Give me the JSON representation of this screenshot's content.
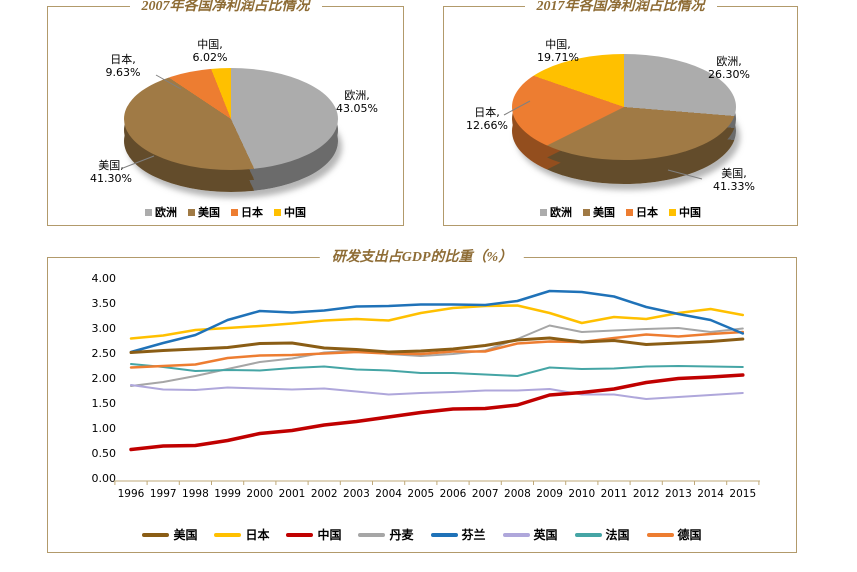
{
  "page": {
    "background": "#FFFFFF",
    "panel_border_color": "#B29A6B",
    "title_color": "#8E6C35",
    "axis_color": "#BFA878"
  },
  "chart_data": [
    {
      "type": "pie",
      "title": "2007年各国净利润占比情况",
      "legend_position": "bottom",
      "slices": [
        {
          "name": "欧洲",
          "pct": 43.05,
          "label_name": "欧洲,",
          "label_pct": "43.05%",
          "color": "#ACACAC"
        },
        {
          "name": "美国",
          "pct": 41.3,
          "label_name": "美国,",
          "label_pct": "41.30%",
          "color": "#A07A45"
        },
        {
          "name": "日本",
          "pct": 9.63,
          "label_name": "日本,",
          "label_pct": "9.63%",
          "color": "#ED7D31"
        },
        {
          "name": "中国",
          "pct": 6.02,
          "label_name": "中国,",
          "label_pct": "6.02%",
          "color": "#FFC000"
        }
      ]
    },
    {
      "type": "pie",
      "title": "2017年各国净利润占比情况",
      "legend_position": "bottom",
      "slices": [
        {
          "name": "欧洲",
          "pct": 26.3,
          "label_name": "欧洲,",
          "label_pct": "26.30%",
          "color": "#ACACAC"
        },
        {
          "name": "美国",
          "pct": 41.33,
          "label_name": "美国,",
          "label_pct": "41.33%",
          "color": "#A07A45"
        },
        {
          "name": "日本",
          "pct": 12.66,
          "label_name": "日本,",
          "label_pct": "12.66%",
          "color": "#ED7D31"
        },
        {
          "name": "中国",
          "pct": 19.71,
          "label_name": "中国,",
          "label_pct": "19.71%",
          "color": "#FFC000"
        }
      ]
    },
    {
      "type": "line",
      "title": "研发支出占GDP的比重（%）",
      "x": [
        1996,
        1997,
        1998,
        1999,
        2000,
        2001,
        2002,
        2003,
        2004,
        2005,
        2006,
        2007,
        2008,
        2009,
        2010,
        2011,
        2012,
        2013,
        2014,
        2015
      ],
      "ylim": [
        0,
        4
      ],
      "ytick_step": 0.5,
      "grid": false,
      "legend_position": "bottom",
      "series": [
        {
          "name": "美国",
          "color": "#8A5D15",
          "values": [
            2.51,
            2.55,
            2.58,
            2.61,
            2.69,
            2.7,
            2.6,
            2.57,
            2.52,
            2.54,
            2.58,
            2.65,
            2.76,
            2.8,
            2.72,
            2.75,
            2.67,
            2.7,
            2.73,
            2.78
          ]
        },
        {
          "name": "日本",
          "color": "#FFC000",
          "values": [
            2.79,
            2.85,
            2.96,
            3.0,
            3.04,
            3.09,
            3.15,
            3.18,
            3.15,
            3.3,
            3.4,
            3.44,
            3.45,
            3.3,
            3.1,
            3.22,
            3.18,
            3.3,
            3.38,
            3.26
          ]
        },
        {
          "name": "中国",
          "color": "#C00000",
          "values": [
            0.57,
            0.64,
            0.65,
            0.75,
            0.89,
            0.95,
            1.06,
            1.13,
            1.22,
            1.31,
            1.38,
            1.39,
            1.46,
            1.66,
            1.71,
            1.78,
            1.91,
            1.99,
            2.02,
            2.06
          ]
        },
        {
          "name": "丹麦",
          "color": "#A6A6A6",
          "values": [
            1.84,
            1.92,
            2.04,
            2.18,
            2.32,
            2.39,
            2.51,
            2.55,
            2.48,
            2.44,
            2.48,
            2.55,
            2.78,
            3.05,
            2.92,
            2.95,
            2.98,
            3.0,
            2.92,
            2.99
          ]
        },
        {
          "name": "芬兰",
          "color": "#1F72B8",
          "values": [
            2.52,
            2.7,
            2.86,
            3.16,
            3.34,
            3.31,
            3.35,
            3.43,
            3.44,
            3.47,
            3.47,
            3.46,
            3.54,
            3.74,
            3.72,
            3.63,
            3.42,
            3.28,
            3.16,
            2.89
          ]
        },
        {
          "name": "英国",
          "color": "#AFA7DB",
          "values": [
            1.86,
            1.77,
            1.76,
            1.81,
            1.79,
            1.77,
            1.79,
            1.73,
            1.67,
            1.7,
            1.72,
            1.75,
            1.75,
            1.78,
            1.67,
            1.67,
            1.58,
            1.62,
            1.66,
            1.7
          ]
        },
        {
          "name": "法国",
          "color": "#45A5A5",
          "values": [
            2.28,
            2.22,
            2.14,
            2.16,
            2.15,
            2.2,
            2.23,
            2.17,
            2.15,
            2.1,
            2.1,
            2.07,
            2.04,
            2.21,
            2.18,
            2.19,
            2.23,
            2.24,
            2.23,
            2.22
          ]
        },
        {
          "name": "德国",
          "color": "#ED7D31",
          "values": [
            2.21,
            2.24,
            2.27,
            2.4,
            2.45,
            2.46,
            2.49,
            2.52,
            2.49,
            2.48,
            2.53,
            2.53,
            2.69,
            2.73,
            2.72,
            2.8,
            2.87,
            2.83,
            2.88,
            2.92
          ]
        }
      ]
    }
  ]
}
